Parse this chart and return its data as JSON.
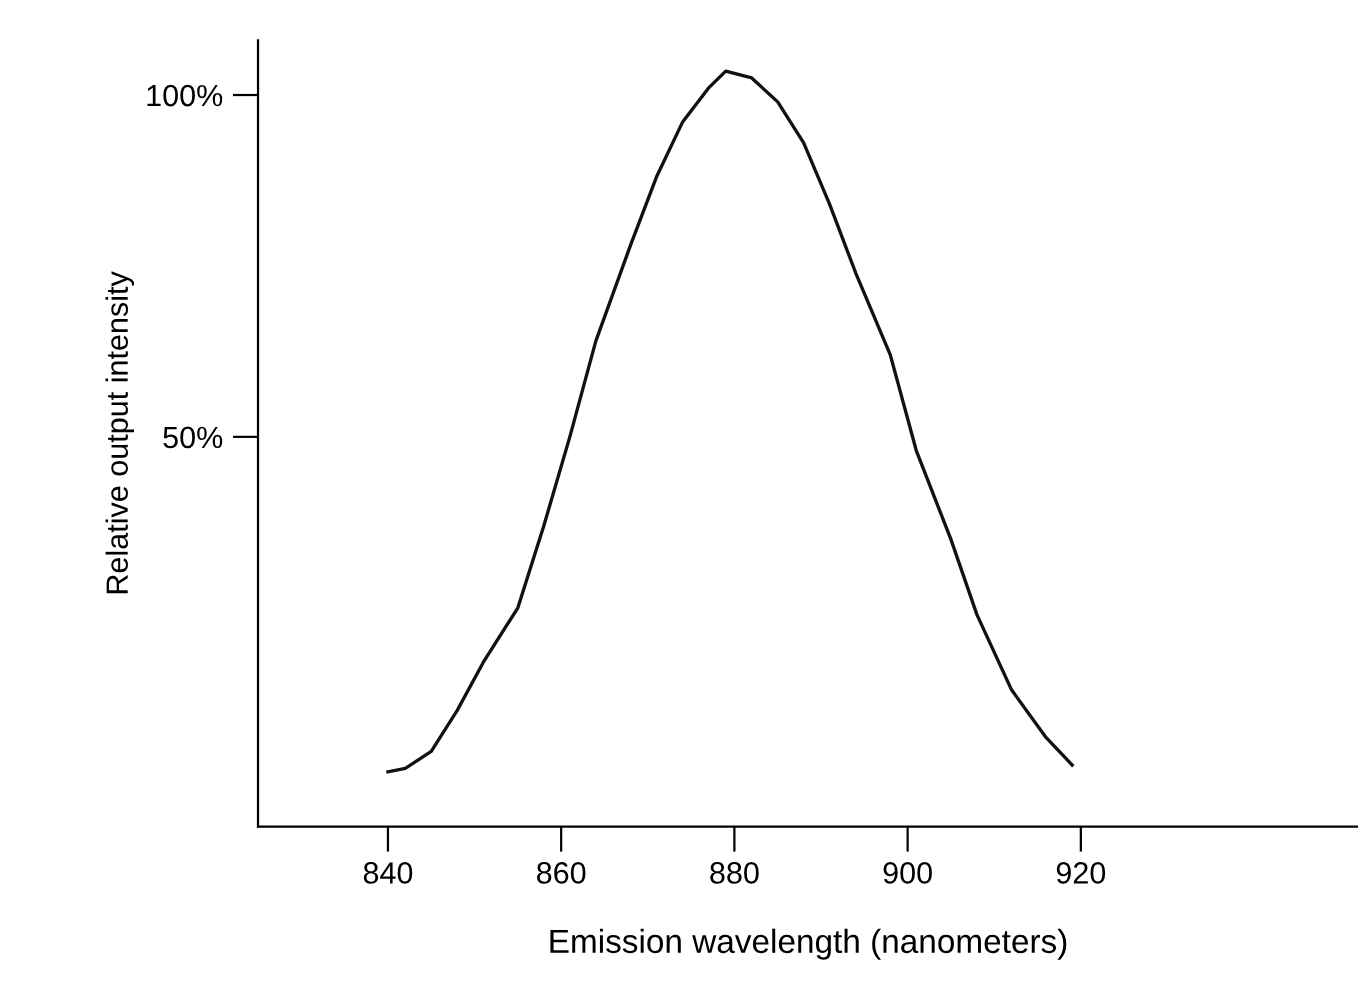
{
  "chart_data": {
    "type": "line",
    "xlabel": "Emission wavelength (nanometers)",
    "ylabel": "Relative output intensity",
    "x": [
      840,
      842,
      845,
      848,
      851,
      855,
      858,
      861,
      864,
      868,
      871,
      874,
      877,
      879,
      882,
      885,
      888,
      891,
      894,
      898,
      901,
      905,
      908,
      912,
      916,
      919
    ],
    "series": [
      {
        "color": "#111111",
        "values": [
          1,
          1.5,
          4,
          10,
          17,
          25,
          37,
          50,
          64,
          78,
          88,
          96,
          101,
          103.5,
          102.5,
          99,
          93,
          84,
          74,
          62,
          48,
          35,
          24,
          13,
          6,
          2
        ]
      }
    ],
    "xlim": [
      825,
      952
    ],
    "ylim": [
      -7,
      108
    ],
    "xticks": [
      840,
      860,
      880,
      900,
      920
    ],
    "yticks": [
      {
        "value": 50,
        "label": "50%"
      },
      {
        "value": 100,
        "label": "100%"
      }
    ],
    "grid": false,
    "legend": false,
    "marker": "none",
    "line_style": "solid"
  }
}
